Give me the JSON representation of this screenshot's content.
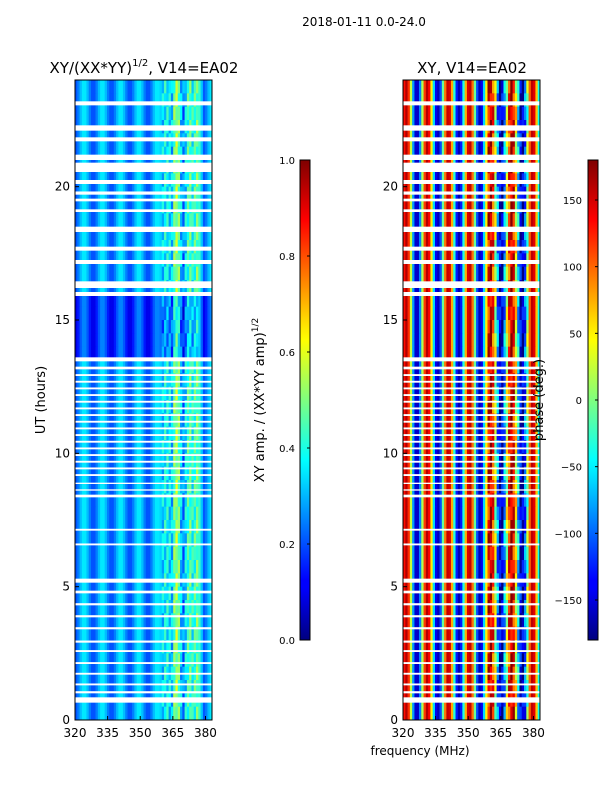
{
  "figure": {
    "suptitle": "2018-01-11 0.0-24.0",
    "shared_xlabel": "frequency (MHz)"
  },
  "chart_data": [
    {
      "type": "heatmap",
      "title": "XY/(XX*YY)^1/2, V14=EA02",
      "title_main": "XY/(XX*YY)",
      "title_exp": "1/2",
      "title_tail": ", V14=EA02",
      "xlabel": "frequency (MHz)",
      "ylabel": "UT (hours)",
      "xlim": [
        320,
        383
      ],
      "ylim": [
        0,
        24
      ],
      "xticks": [
        320,
        335,
        350,
        365,
        380
      ],
      "yticks": [
        0,
        5,
        10,
        15,
        20
      ],
      "colorbar": {
        "label": "XY amp. / (XX*YY amp)^1/2",
        "label_main": "XY amp. / (XX*YY amp)",
        "label_exp": "1/2",
        "range": [
          0.0,
          1.0
        ],
        "ticks": [
          "0.0",
          "0.2",
          "0.4",
          "0.6",
          "0.8",
          "1.0"
        ],
        "tick_values": [
          0.0,
          0.2,
          0.4,
          0.6,
          0.8,
          1.0
        ],
        "colormap": "jet"
      }
    },
    {
      "type": "heatmap",
      "title": "XY, V14=EA02",
      "xlabel": "frequency (MHz)",
      "ylabel": "",
      "xlim": [
        320,
        383
      ],
      "ylim": [
        0,
        24
      ],
      "xticks": [
        320,
        335,
        350,
        365,
        380
      ],
      "yticks": [
        0,
        5,
        10,
        15,
        20
      ],
      "colorbar": {
        "label": "phase (deg.)",
        "range": [
          -180,
          180
        ],
        "ticks": [
          "−150",
          "−100",
          "−50",
          "0",
          "50",
          "100",
          "150"
        ],
        "tick_values": [
          -150,
          -100,
          -50,
          0,
          50,
          100,
          150
        ],
        "colormap": "jet"
      }
    }
  ],
  "gaps_hours": [
    [
      23.05,
      23.2
    ],
    [
      22.1,
      22.3
    ],
    [
      21.7,
      21.85
    ],
    [
      21.0,
      21.2
    ],
    [
      20.55,
      20.9
    ],
    [
      20.1,
      20.25
    ],
    [
      19.7,
      19.82
    ],
    [
      19.45,
      19.55
    ],
    [
      19.05,
      19.15
    ],
    [
      18.3,
      18.5
    ],
    [
      17.6,
      17.75
    ],
    [
      17.1,
      17.25
    ],
    [
      16.2,
      16.45
    ],
    [
      15.9,
      16.05
    ],
    [
      13.45,
      13.6
    ],
    [
      13.15,
      13.25
    ],
    [
      12.9,
      12.97
    ],
    [
      12.65,
      12.72
    ],
    [
      12.4,
      12.47
    ],
    [
      12.15,
      12.22
    ],
    [
      11.9,
      11.97
    ],
    [
      11.65,
      11.72
    ],
    [
      11.4,
      11.47
    ],
    [
      11.15,
      11.22
    ],
    [
      10.9,
      10.97
    ],
    [
      10.65,
      10.72
    ],
    [
      10.4,
      10.47
    ],
    [
      10.15,
      10.22
    ],
    [
      9.9,
      9.97
    ],
    [
      9.65,
      9.72
    ],
    [
      9.4,
      9.47
    ],
    [
      9.15,
      9.22
    ],
    [
      8.85,
      8.9
    ],
    [
      8.6,
      8.65
    ],
    [
      8.35,
      8.45
    ],
    [
      7.1,
      7.17
    ],
    [
      6.55,
      6.62
    ],
    [
      5.15,
      5.3
    ],
    [
      4.75,
      4.85
    ],
    [
      4.3,
      4.38
    ],
    [
      3.85,
      3.93
    ],
    [
      3.4,
      3.48
    ],
    [
      2.9,
      2.98
    ],
    [
      2.55,
      2.62
    ],
    [
      2.1,
      2.17
    ],
    [
      1.7,
      1.77
    ],
    [
      1.3,
      1.37
    ],
    [
      1.0,
      1.08
    ],
    [
      0.65,
      0.85
    ]
  ]
}
